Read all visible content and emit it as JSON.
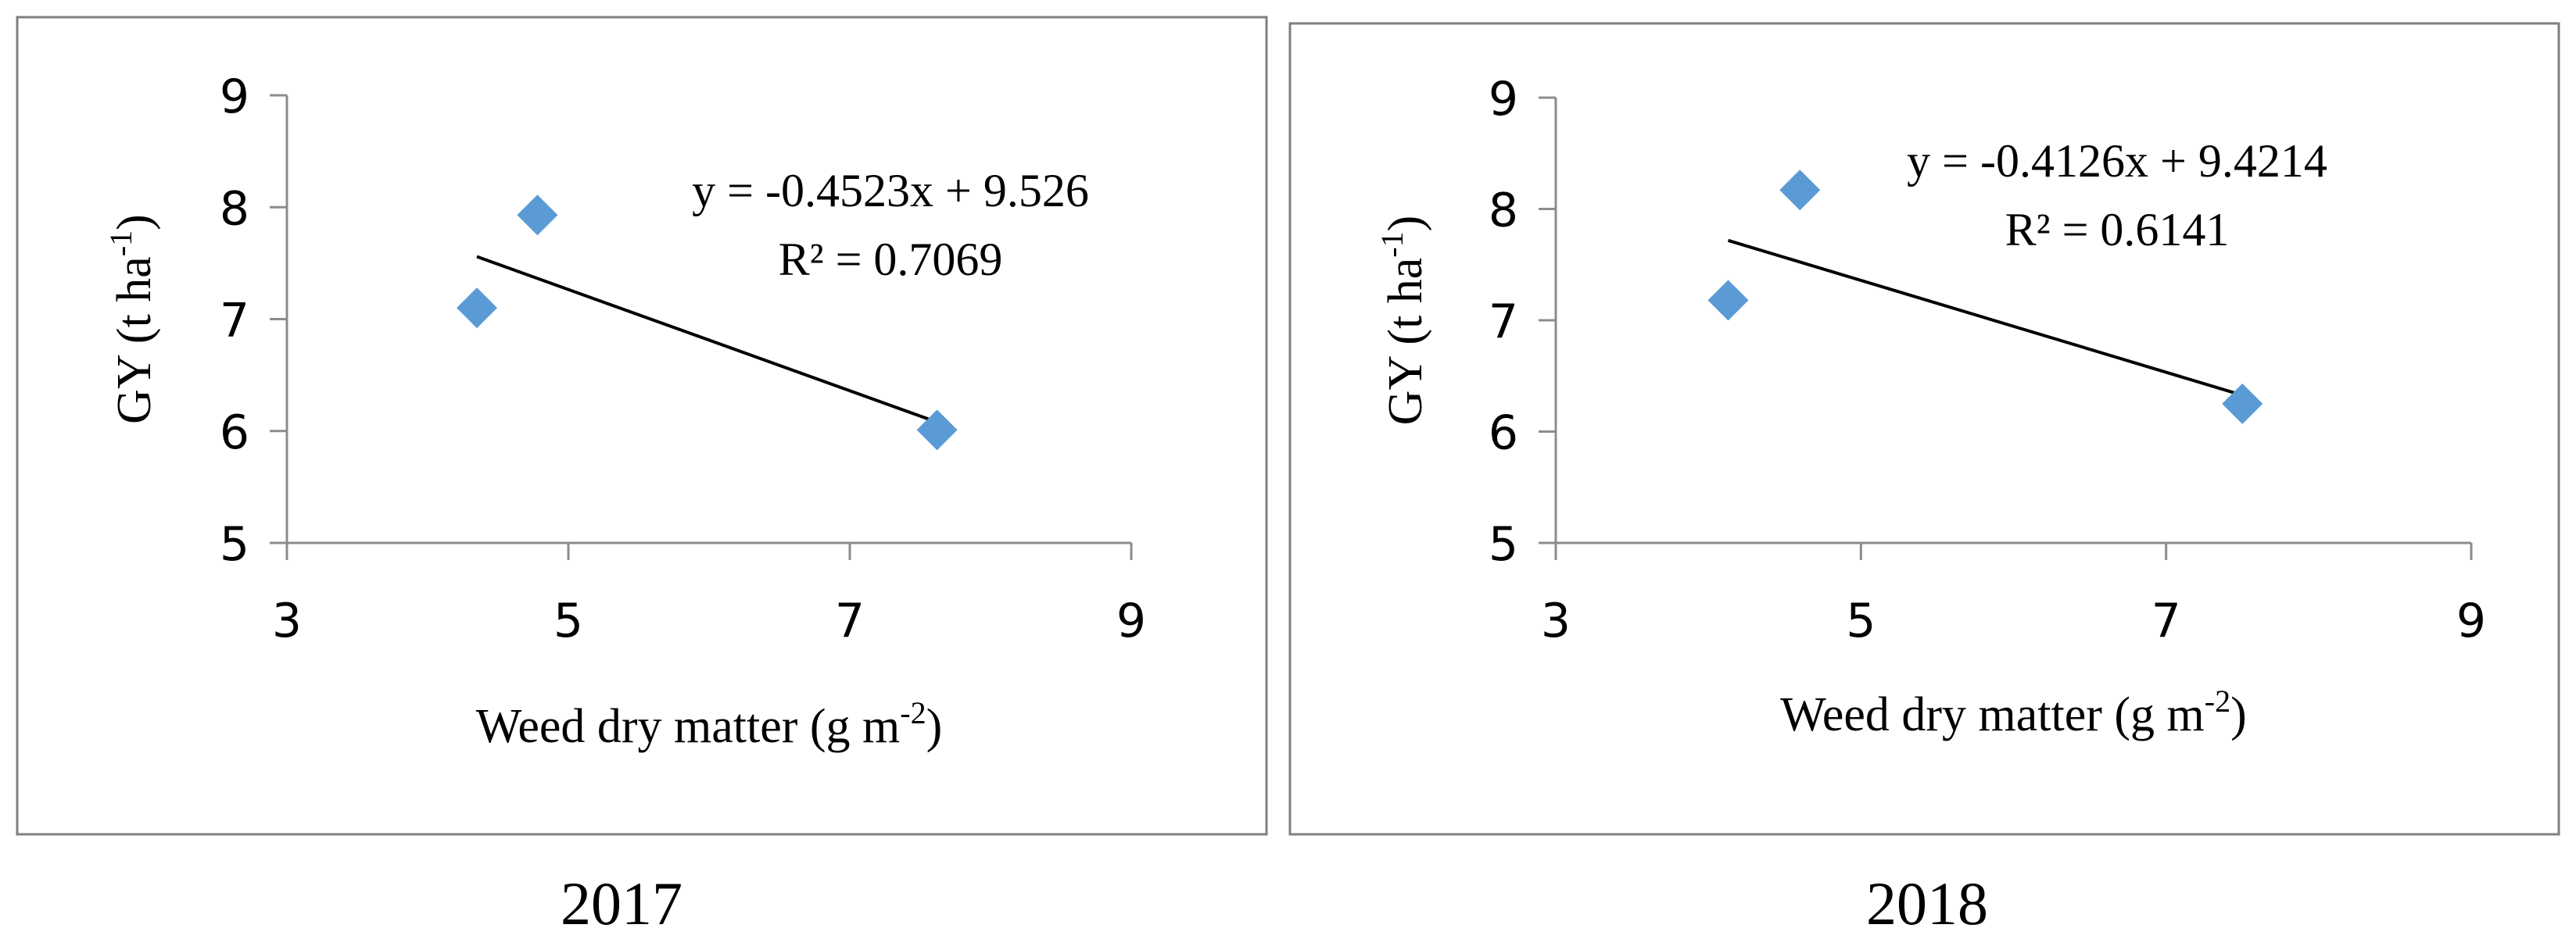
{
  "chart_data": [
    {
      "type": "scatter",
      "caption": "2017",
      "xlabel": "Weed dry matter (g m",
      "xlabel_sup": "-2",
      "xlabel_end": ")",
      "ylabel": "GY (t ha",
      "ylabel_sup": "-1",
      "ylabel_end": ")",
      "xlim": [
        3,
        9
      ],
      "ylim": [
        5,
        9
      ],
      "xticks": [
        "3",
        "5",
        "7",
        "9"
      ],
      "yticks": [
        "5",
        "6",
        "7",
        "8",
        "9"
      ],
      "grid": false,
      "marker_color": "#5B9BD5",
      "points": [
        {
          "x": 4.35,
          "y": 7.1
        },
        {
          "x": 4.78,
          "y": 7.93
        },
        {
          "x": 7.62,
          "y": 6.01
        }
      ],
      "trendline": {
        "slope": -0.4523,
        "intercept": 9.526
      },
      "equation": "y = -0.4523x + 9.526",
      "r2": "R² = 0.7069"
    },
    {
      "type": "scatter",
      "caption": "2018",
      "xlabel": "Weed dry matter (g m",
      "xlabel_sup": "-2",
      "xlabel_end": ")",
      "ylabel": "GY (t ha",
      "ylabel_sup": "-1",
      "ylabel_end": ")",
      "xlim": [
        3,
        9
      ],
      "ylim": [
        5,
        9
      ],
      "xticks": [
        "3",
        "5",
        "7",
        "9"
      ],
      "yticks": [
        "5",
        "6",
        "7",
        "8",
        "9"
      ],
      "grid": false,
      "marker_color": "#5B9BD5",
      "points": [
        {
          "x": 4.13,
          "y": 7.18
        },
        {
          "x": 4.6,
          "y": 8.17
        },
        {
          "x": 7.5,
          "y": 6.25
        }
      ],
      "trendline": {
        "slope": -0.4126,
        "intercept": 9.4214
      },
      "equation": "y = -0.4126x + 9.4214",
      "r2": "R² = 0.6141"
    }
  ]
}
